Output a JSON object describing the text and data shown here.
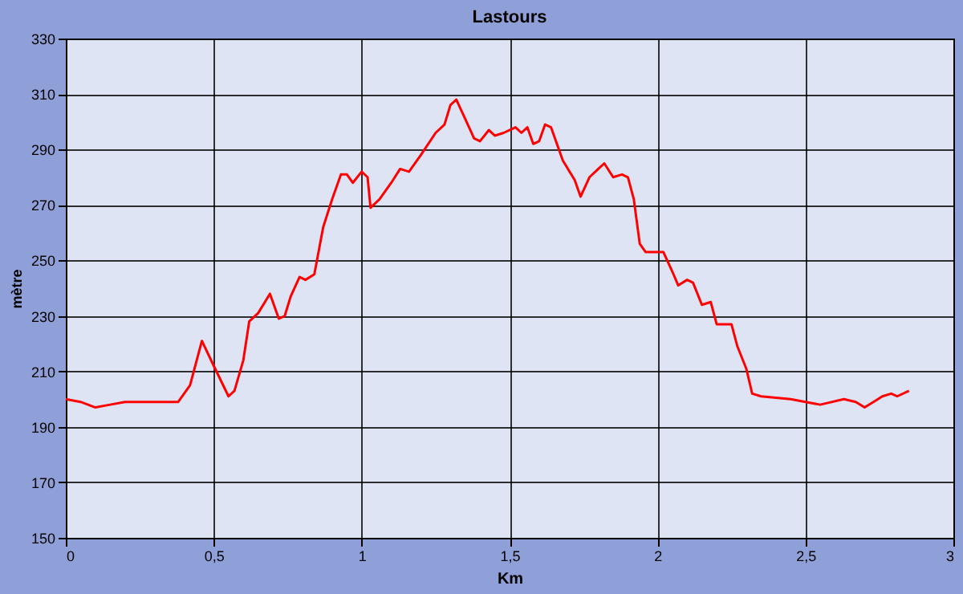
{
  "chart_data": {
    "type": "line",
    "title": "Lastours",
    "xlabel": "Km",
    "ylabel": "mètre",
    "x": [
      0,
      0.05,
      0.1,
      0.15,
      0.2,
      0.3,
      0.38,
      0.42,
      0.46,
      0.5,
      0.55,
      0.57,
      0.6,
      0.62,
      0.65,
      0.69,
      0.72,
      0.74,
      0.76,
      0.79,
      0.81,
      0.84,
      0.87,
      0.9,
      0.93,
      0.95,
      0.97,
      1.0,
      1.02,
      1.03,
      1.06,
      1.1,
      1.13,
      1.16,
      1.2,
      1.25,
      1.28,
      1.3,
      1.32,
      1.35,
      1.38,
      1.4,
      1.43,
      1.45,
      1.48,
      1.52,
      1.54,
      1.56,
      1.58,
      1.6,
      1.62,
      1.64,
      1.68,
      1.72,
      1.74,
      1.77,
      1.8,
      1.82,
      1.85,
      1.88,
      1.9,
      1.92,
      1.94,
      1.96,
      2.0,
      2.02,
      2.05,
      2.07,
      2.1,
      2.12,
      2.15,
      2.18,
      2.2,
      2.25,
      2.27,
      2.3,
      2.32,
      2.35,
      2.45,
      2.5,
      2.55,
      2.63,
      2.67,
      2.7,
      2.73,
      2.76,
      2.79,
      2.81,
      2.85
    ],
    "series": [
      {
        "color": "#ff0000",
        "values": [
          200,
          199,
          197,
          198,
          199,
          199,
          199,
          205,
          221,
          212,
          201,
          203,
          214,
          228,
          231,
          238,
          229,
          230,
          237,
          244,
          243,
          245,
          262,
          272,
          281,
          281,
          278,
          282,
          280,
          269,
          272,
          278,
          283,
          282,
          288,
          296,
          299,
          306,
          308,
          301,
          294,
          293,
          297,
          295,
          296,
          298,
          296,
          298,
          292,
          293,
          299,
          298,
          286,
          279,
          273,
          280,
          283,
          285,
          280,
          281,
          280,
          272,
          256,
          253,
          253,
          253,
          246,
          241,
          243,
          242,
          234,
          235,
          227,
          227,
          219,
          211,
          202,
          201,
          200,
          199,
          198,
          200,
          199,
          197,
          199,
          201,
          202,
          201,
          203
        ]
      }
    ],
    "xlim": [
      0,
      3
    ],
    "xticks": [
      0,
      {
        "value": 0.5,
        "label": "0,5"
      },
      1,
      {
        "value": 1.5,
        "label": "1,5"
      },
      2,
      {
        "value": 2.5,
        "label": "2,5"
      },
      3
    ],
    "ylim": [
      150,
      330
    ],
    "yticks": [
      150,
      170,
      190,
      210,
      230,
      250,
      270,
      290,
      310,
      330
    ],
    "grid": true,
    "marker": "none",
    "line_style": "solid"
  }
}
